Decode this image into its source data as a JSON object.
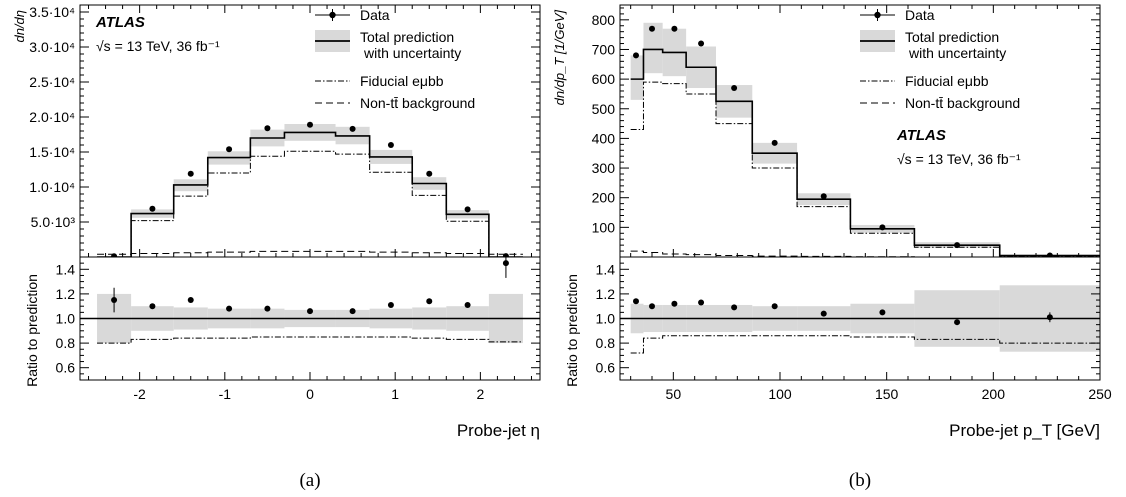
{
  "captions": [
    "(a)",
    "(b)"
  ],
  "chart_data": [
    {
      "type": "line",
      "panel": "a",
      "experiment": "ATLAS",
      "energy_label": "√s = 13 TeV, 36 fb⁻¹",
      "ylabel": "dn/dη",
      "ratio_ylabel": "Ratio to prediction",
      "xlabel": "Probe-jet η",
      "xlim": [
        -2.7,
        2.7
      ],
      "ylim": [
        0,
        36000
      ],
      "ratio_ylim": [
        0.5,
        1.5
      ],
      "x_ticks": [
        "-2",
        "-1",
        "0",
        "1",
        "2"
      ],
      "y_ticks": [
        "5.0·10³",
        "1.0·10⁴",
        "1.5·10⁴",
        "2.0·10⁴",
        "2.5·10⁴",
        "3.0·10⁴",
        "3.5·10⁴"
      ],
      "ratio_ticks": [
        "0.6",
        "0.8",
        "1.0",
        "1.2",
        "1.4"
      ],
      "grid": false,
      "legend_position": "top-right",
      "legend": [
        "Data",
        "Total prediction",
        "with uncertainty",
        "Fiducial eμbb",
        "Non-tt̄ background"
      ],
      "bin_edges": [
        -2.5,
        -2.1,
        -1.6,
        -1.2,
        -0.7,
        -0.3,
        0.3,
        0.7,
        1.2,
        1.6,
        2.1,
        2.5
      ],
      "series": [
        {
          "name": "Data",
          "x": [
            -2.3,
            -1.85,
            -1.4,
            -0.95,
            -0.5,
            0.0,
            0.5,
            0.95,
            1.4,
            1.85,
            2.3
          ],
          "values": [
            100,
            6900,
            11900,
            15400,
            18400,
            18900,
            18300,
            16000,
            11900,
            6800,
            120
          ]
        },
        {
          "name": "Total prediction",
          "values": [
            0,
            6200,
            10300,
            14200,
            17000,
            17800,
            17300,
            14300,
            10500,
            6100,
            0
          ]
        },
        {
          "name": "Uncertainty low",
          "values": [
            0,
            5600,
            9400,
            13200,
            15800,
            16600,
            16100,
            13300,
            9600,
            5500,
            0
          ]
        },
        {
          "name": "Uncertainty high",
          "values": [
            0,
            6800,
            11100,
            15100,
            18200,
            19000,
            18600,
            15300,
            11400,
            6700,
            0
          ]
        },
        {
          "name": "Fiducial eμbb",
          "values": [
            0,
            5200,
            8700,
            12000,
            14400,
            15100,
            14700,
            12100,
            8800,
            5100,
            0
          ]
        },
        {
          "name": "Non-tt̄ background",
          "values": [
            400,
            500,
            600,
            700,
            800,
            800,
            800,
            700,
            600,
            500,
            400
          ]
        }
      ],
      "ratio_series": [
        {
          "name": "Data ratio",
          "x": [
            -2.3,
            -1.85,
            -1.4,
            -0.95,
            -0.5,
            0.0,
            0.5,
            0.95,
            1.4,
            1.85,
            2.3
          ],
          "values": [
            1.15,
            1.1,
            1.15,
            1.08,
            1.08,
            1.06,
            1.06,
            1.11,
            1.14,
            1.11,
            1.45
          ],
          "errors": [
            0.1,
            0.02,
            0.02,
            0.02,
            0.02,
            0.02,
            0.02,
            0.02,
            0.02,
            0.02,
            0.12
          ]
        },
        {
          "name": "Uncertainty band low",
          "values": [
            0.8,
            0.9,
            0.91,
            0.92,
            0.92,
            0.93,
            0.93,
            0.92,
            0.91,
            0.9,
            0.8
          ]
        },
        {
          "name": "Uncertainty band high",
          "values": [
            1.2,
            1.1,
            1.09,
            1.08,
            1.08,
            1.07,
            1.07,
            1.08,
            1.09,
            1.1,
            1.2
          ]
        },
        {
          "name": "Fiducial ratio",
          "values": [
            0.8,
            0.83,
            0.84,
            0.84,
            0.85,
            0.85,
            0.85,
            0.85,
            0.84,
            0.83,
            0.81
          ]
        }
      ]
    },
    {
      "type": "line",
      "panel": "b",
      "experiment": "ATLAS",
      "energy_label": "√s = 13 TeV, 36 fb⁻¹",
      "ylabel": "dn/dp_T [1/GeV]",
      "ratio_ylabel": "Ratio to prediction",
      "xlabel": "Probe-jet p_T [GeV]",
      "xlim": [
        25,
        250
      ],
      "ylim": [
        0,
        850
      ],
      "ratio_ylim": [
        0.5,
        1.5
      ],
      "x_ticks": [
        "50",
        "100",
        "150",
        "200",
        "250"
      ],
      "y_ticks": [
        "100",
        "200",
        "300",
        "400",
        "500",
        "600",
        "700",
        "800"
      ],
      "ratio_ticks": [
        "0.6",
        "0.8",
        "1.0",
        "1.2",
        "1.4"
      ],
      "grid": false,
      "legend_position": "top-right",
      "legend": [
        "Data",
        "Total prediction",
        "with uncertainty",
        "Fiducial eμbb",
        "Non-tt̄ background"
      ],
      "bin_edges": [
        30,
        36,
        45,
        56,
        70,
        87,
        108,
        133,
        163,
        203,
        250
      ],
      "series": [
        {
          "name": "Data",
          "x": [
            32.5,
            40,
            50.5,
            63,
            78.5,
            97.5,
            120.5,
            148,
            183,
            226.5
          ],
          "values": [
            680,
            770,
            770,
            720,
            570,
            385,
            205,
            100,
            40,
            5
          ]
        },
        {
          "name": "Total prediction",
          "values": [
            600,
            700,
            690,
            640,
            525,
            350,
            195,
            95,
            40,
            5
          ]
        },
        {
          "name": "Uncertainty low",
          "values": [
            530,
            620,
            610,
            570,
            470,
            315,
            175,
            82,
            31,
            3
          ]
        },
        {
          "name": "Uncertainty high",
          "values": [
            680,
            790,
            770,
            710,
            580,
            385,
            215,
            108,
            50,
            8
          ]
        },
        {
          "name": "Fiducial eμbb",
          "values": [
            430,
            590,
            585,
            550,
            450,
            300,
            170,
            80,
            33,
            3
          ]
        },
        {
          "name": "Non-tt̄ background",
          "values": [
            20,
            15,
            10,
            8,
            5,
            3,
            2,
            1,
            0,
            0
          ]
        }
      ],
      "ratio_series": [
        {
          "name": "Data ratio",
          "x": [
            32.5,
            40,
            50.5,
            63,
            78.5,
            97.5,
            120.5,
            148,
            183,
            226.5
          ],
          "values": [
            1.14,
            1.1,
            1.12,
            1.13,
            1.09,
            1.1,
            1.04,
            1.05,
            0.97,
            1.01
          ],
          "errors": [
            0.02,
            0.02,
            0.02,
            0.02,
            0.02,
            0.02,
            0.02,
            0.02,
            0.02,
            0.04
          ]
        },
        {
          "name": "Uncertainty band low",
          "values": [
            0.88,
            0.89,
            0.89,
            0.89,
            0.89,
            0.9,
            0.9,
            0.88,
            0.77,
            0.73
          ]
        },
        {
          "name": "Uncertainty band high",
          "values": [
            1.12,
            1.11,
            1.11,
            1.11,
            1.11,
            1.1,
            1.1,
            1.12,
            1.23,
            1.27
          ]
        },
        {
          "name": "Fiducial ratio",
          "values": [
            0.72,
            0.84,
            0.86,
            0.86,
            0.86,
            0.86,
            0.86,
            0.85,
            0.83,
            0.8
          ]
        }
      ]
    }
  ]
}
